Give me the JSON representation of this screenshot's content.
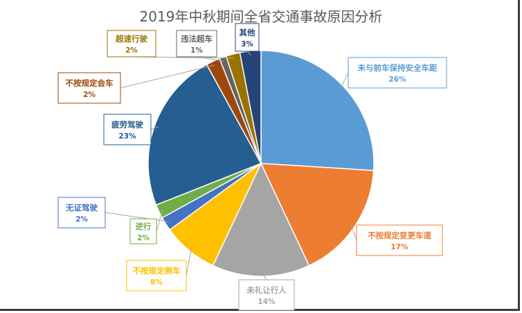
{
  "chart_data": {
    "type": "pie",
    "title": "2019年中秋期间全省交通事故原因分析",
    "slices": [
      {
        "name": "未与前车保持安全车距",
        "value": 26,
        "label": "26%",
        "color": "#5b9bd5"
      },
      {
        "name": "不按规定变更车道",
        "value": 17,
        "label": "17%",
        "color": "#ed7d31"
      },
      {
        "name": "未礼让行人",
        "value": 14,
        "label": "14%",
        "color": "#a5a5a5"
      },
      {
        "name": "不按规定倒车",
        "value": 8,
        "label": "8%",
        "color": "#ffc000"
      },
      {
        "name": "无证驾驶",
        "value": 2,
        "label": "2%",
        "color": "#4472c4"
      },
      {
        "name": "逆行",
        "value": 2,
        "label": "2%",
        "color": "#70ad47"
      },
      {
        "name": "疲劳驾驶",
        "value": 23,
        "label": "23%",
        "color": "#255e91"
      },
      {
        "name": "不按规定会车",
        "value": 2,
        "label": "2%",
        "color": "#9e480e"
      },
      {
        "name": "违法超车",
        "value": 1,
        "label": "1%",
        "color": "#636363"
      },
      {
        "name": "超速行驶",
        "value": 2,
        "label": "2%",
        "color": "#997300"
      },
      {
        "name": "其他",
        "value": 3,
        "label": "3%",
        "color": "#264478"
      }
    ]
  }
}
